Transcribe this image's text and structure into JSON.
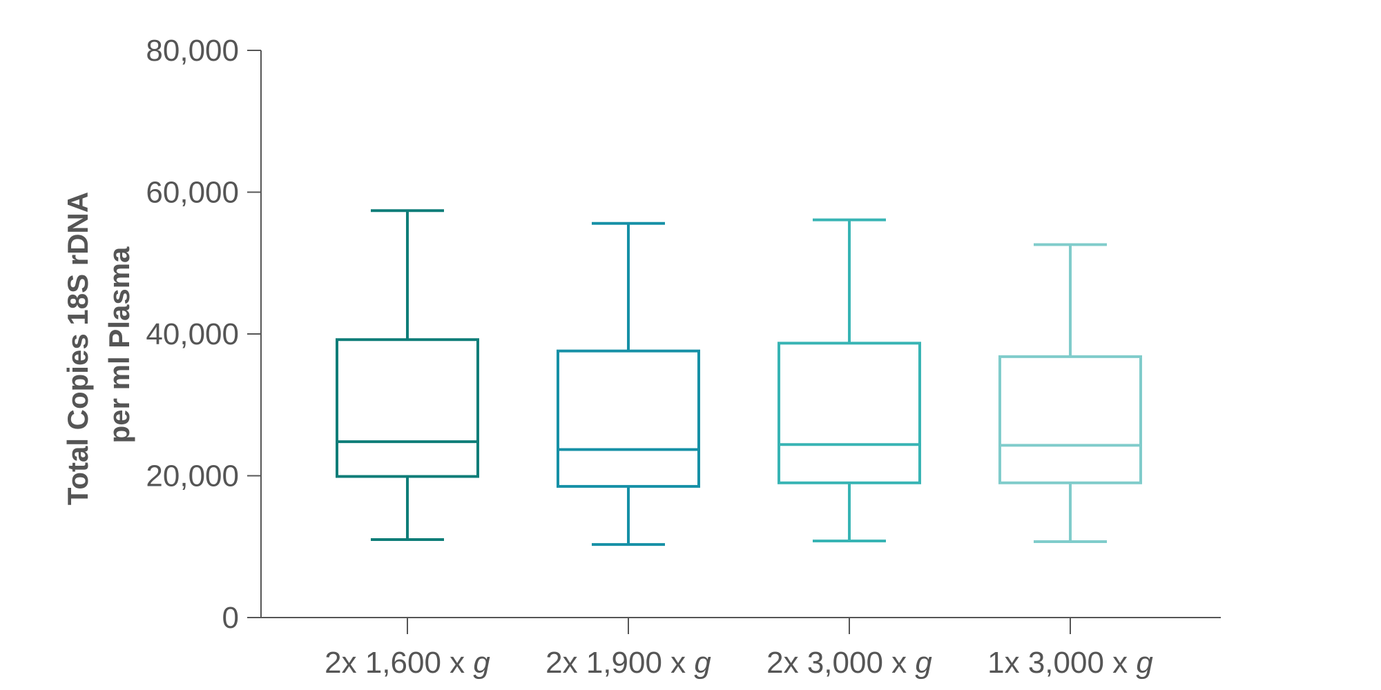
{
  "chart_data": {
    "type": "box",
    "title": "",
    "xlabel": "",
    "ylabel_lines": [
      "Total Copies 18S rDNA",
      "per ml Plasma"
    ],
    "ylim": [
      0,
      80000
    ],
    "yticks": [
      0,
      20000,
      40000,
      60000,
      80000
    ],
    "ytick_labels": [
      "0",
      "20,000",
      "40,000",
      "60,000",
      "80,000"
    ],
    "grid": false,
    "categories": [
      {
        "prefix": "2x 1,600 x ",
        "suffix": "g"
      },
      {
        "prefix": "2x 1,900 x ",
        "suffix": "g"
      },
      {
        "prefix": "2x 3,000 x ",
        "suffix": "g"
      },
      {
        "prefix": "1x 3,000 x ",
        "suffix": "g"
      }
    ],
    "boxes": [
      {
        "min": 11000,
        "q1": 19900,
        "median": 24800,
        "q3": 39200,
        "max": 57400,
        "color": "#0e7d78"
      },
      {
        "min": 10300,
        "q1": 18500,
        "median": 23700,
        "q3": 37600,
        "max": 55600,
        "color": "#1690a6"
      },
      {
        "min": 10800,
        "q1": 19000,
        "median": 24400,
        "q3": 38700,
        "max": 56100,
        "color": "#38b4b4"
      },
      {
        "min": 10700,
        "q1": 19000,
        "median": 24300,
        "q3": 36800,
        "max": 52600,
        "color": "#80cccb"
      }
    ]
  }
}
